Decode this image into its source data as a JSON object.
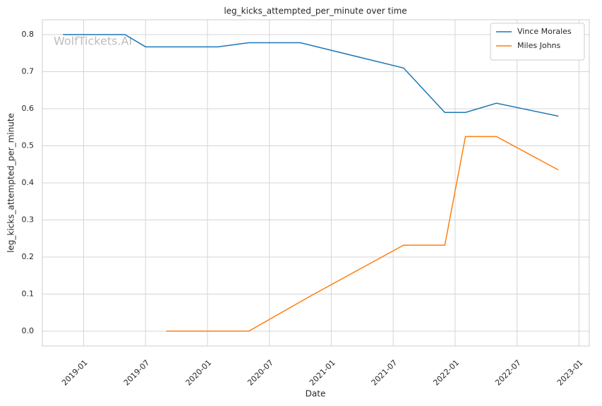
{
  "chart_data": {
    "type": "line",
    "title": "leg_kicks_attempted_per_minute over time",
    "x_label": "Date",
    "y_label": "leg_kicks_attempted_per_minute",
    "annotation": "WolfTickets.AI",
    "series": [
      {
        "name": "Vince Morales",
        "color": "#1f77b4",
        "x": [
          "2018-11",
          "2019-05",
          "2019-07",
          "2020-02",
          "2020-05",
          "2020-10",
          "2021-08",
          "2021-12",
          "2022-02",
          "2022-05",
          "2022-11"
        ],
        "values": [
          0.8,
          0.8,
          0.767,
          0.767,
          0.778,
          0.778,
          0.71,
          0.59,
          0.59,
          0.615,
          0.58
        ]
      },
      {
        "name": "Miles Johns",
        "color": "#ff7f0e",
        "x": [
          "2019-09",
          "2020-05",
          "2020-11",
          "2021-08",
          "2021-12",
          "2022-02",
          "2022-05",
          "2022-11"
        ],
        "values": [
          0,
          0,
          0.095,
          0.232,
          0.232,
          0.525,
          0.525,
          0.435
        ]
      }
    ],
    "xlim": [
      "2018-09",
      "2023-02"
    ],
    "xticks": [
      "2019-01",
      "2019-07",
      "2020-01",
      "2020-07",
      "2021-01",
      "2021-07",
      "2022-01",
      "2022-07",
      "2023-01"
    ],
    "ylim": [
      -0.04,
      0.84
    ],
    "yticks": [
      {
        "value": 0,
        "label": "0.0"
      },
      0.1,
      0.2,
      0.3,
      0.4,
      0.5,
      0.6,
      0.7,
      0.8
    ],
    "grid": true,
    "legend": "upper right"
  }
}
